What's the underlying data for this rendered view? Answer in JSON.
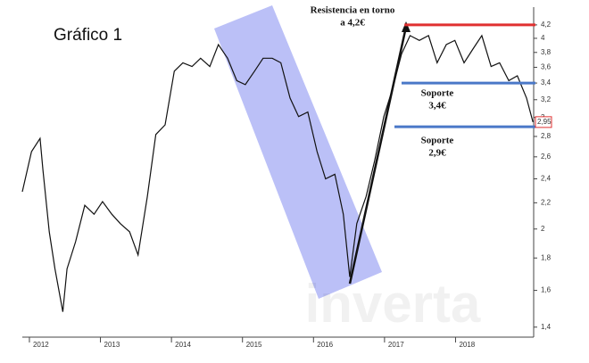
{
  "chart_data": {
    "type": "line",
    "title": "Gráfico 1",
    "watermark": "inverta",
    "log_y": true,
    "grid": false,
    "color": "#111111",
    "xlim": [
      2011.9,
      2019.1
    ],
    "xticks": [
      2012,
      2013,
      2014,
      2015,
      2016,
      2017,
      2018
    ],
    "ylim": [
      1.35,
      4.48
    ],
    "yticks": [
      {
        "value": 1.4,
        "label": "1,4"
      },
      {
        "value": 1.6,
        "label": "1,6"
      },
      {
        "value": 1.8,
        "label": "1,8"
      },
      2,
      {
        "value": 2.2,
        "label": "2,2"
      },
      {
        "value": 2.4,
        "label": "2,4"
      },
      {
        "value": 2.6,
        "label": "2,6"
      },
      {
        "value": 2.8,
        "label": "2,8"
      },
      3,
      {
        "value": 3.2,
        "label": "3,2"
      },
      {
        "value": 3.4,
        "label": "3,4"
      },
      {
        "value": 3.6,
        "label": "3,6"
      },
      {
        "value": 3.8,
        "label": "3,8"
      },
      4,
      {
        "value": 4.2,
        "label": "4,2"
      }
    ],
    "x": [
      2011.9,
      2012.03,
      2012.15,
      2012.19,
      2012.28,
      2012.36,
      2012.47,
      2012.53,
      2012.65,
      2012.78,
      2012.91,
      2013.03,
      2013.16,
      2013.28,
      2013.41,
      2013.53,
      2013.66,
      2013.78,
      2013.91,
      2014.04,
      2014.16,
      2014.29,
      2014.41,
      2014.54,
      2014.66,
      2014.79,
      2014.92,
      2015.04,
      2015.17,
      2015.29,
      2015.42,
      2015.54,
      2015.67,
      2015.79,
      2015.92,
      2016.05,
      2016.17,
      2016.3,
      2016.42,
      2016.51,
      2016.61,
      2016.74,
      2016.86,
      2016.99,
      2017.11,
      2017.24,
      2017.36,
      2017.49,
      2017.62,
      2017.74,
      2017.87,
      2017.99,
      2018.12,
      2018.24,
      2018.37,
      2018.5,
      2018.62,
      2018.75,
      2018.87,
      2019.0,
      2019.09
    ],
    "values": [
      2.29,
      2.65,
      2.78,
      2.48,
      1.98,
      1.73,
      1.48,
      1.73,
      1.91,
      2.18,
      2.11,
      2.21,
      2.11,
      2.04,
      1.98,
      1.82,
      2.25,
      2.82,
      2.92,
      3.55,
      3.66,
      3.61,
      3.72,
      3.61,
      3.91,
      3.72,
      3.43,
      3.38,
      3.55,
      3.72,
      3.72,
      3.66,
      3.22,
      3.01,
      3.06,
      2.65,
      2.4,
      2.44,
      2.11,
      1.68,
      2.04,
      2.25,
      2.56,
      3.01,
      3.32,
      3.78,
      4.04,
      3.97,
      4.04,
      3.66,
      3.91,
      3.97,
      3.66,
      3.84,
      4.04,
      3.61,
      3.66,
      3.43,
      3.49,
      3.22,
      2.95
    ],
    "levels": [
      {
        "value": 4.2,
        "color": "#e03030",
        "x_from": 2017.28,
        "label": [
          "Resistencia en torno",
          "a 4,2€"
        ]
      },
      {
        "value": 3.4,
        "color": "#4a78c8",
        "x_from": 2017.24,
        "label": [
          "Soporte",
          "3,4€"
        ]
      },
      {
        "value": 2.9,
        "color": "#4a78c8",
        "x_from": 2017.14,
        "label": [
          "Soporte",
          "2,9€"
        ]
      }
    ],
    "last_price": {
      "value": 2.95,
      "label": "2,95"
    }
  }
}
